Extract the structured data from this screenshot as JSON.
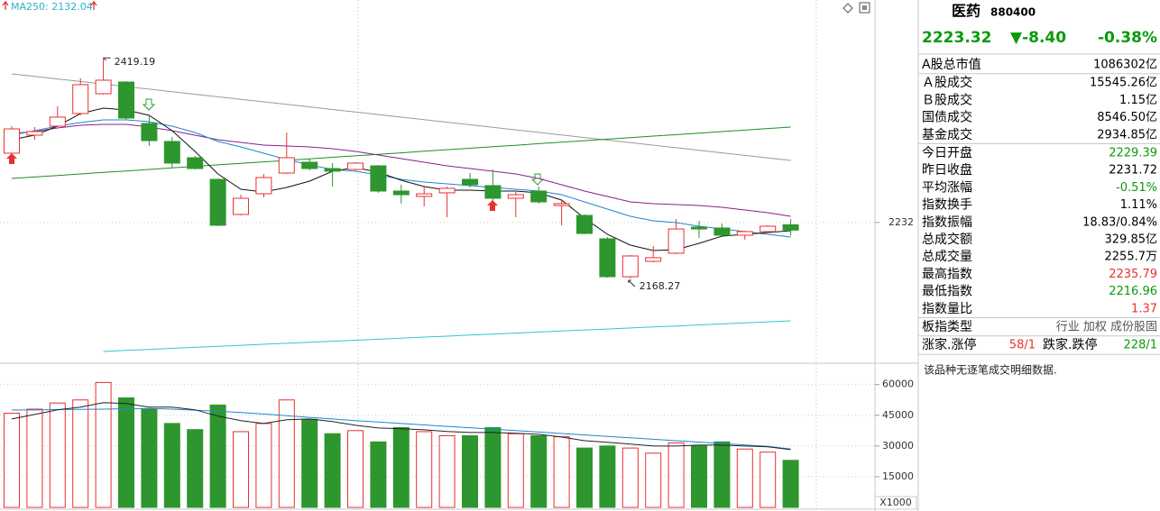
{
  "chart_data": [
    {
      "type": "candlestick",
      "title": "MA250: 2132.04",
      "title_color": "#2bb3c8",
      "up_color": "#e8312f",
      "down_color": "#2e962e",
      "open": [
        2310.8,
        2331.3,
        2341.5,
        2355.9,
        2378.4,
        2391.7,
        2344.6,
        2324.1,
        2305.6,
        2281.0,
        2241.1,
        2264.6,
        2288.2,
        2300.5,
        2293.3,
        2292.3,
        2296.4,
        2267.7,
        2261.6,
        2265.7,
        2281.0,
        2273.9,
        2259.5,
        2267.7,
        2251.3,
        2240.0,
        2213.4,
        2170.3,
        2187.8,
        2197.0,
        2226.7,
        2225.7,
        2217.5,
        2221.6,
        2229.39
      ],
      "high": [
        2341.5,
        2340.5,
        2364.0,
        2395.8,
        2419.19,
        2392.8,
        2353.8,
        2329.2,
        2307.7,
        2282.1,
        2263.6,
        2287.2,
        2334.3,
        2304.6,
        2299.5,
        2300.5,
        2297.4,
        2274.9,
        2273.9,
        2272.8,
        2288.2,
        2292.3,
        2266.7,
        2272.8,
        2256.4,
        2241.1,
        2215.4,
        2194.9,
        2205.2,
        2235.9,
        2233.9,
        2230.8,
        2222.6,
        2228.8,
        2235.79
      ],
      "low": [
        2308.7,
        2326.1,
        2340.5,
        2353.8,
        2377.4,
        2348.7,
        2319.0,
        2294.4,
        2292.3,
        2227.7,
        2240.0,
        2260.5,
        2287.2,
        2291.3,
        2272.8,
        2290.3,
        2265.7,
        2253.4,
        2250.3,
        2238.0,
        2271.8,
        2256.4,
        2238.0,
        2253.4,
        2228.8,
        2218.5,
        2169.3,
        2168.27,
        2186.7,
        2195.9,
        2214.4,
        2215.4,
        2212.4,
        2220.6,
        2216.96
      ],
      "close": [
        2338.4,
        2335.4,
        2351.8,
        2388.7,
        2393.8,
        2350.7,
        2325.1,
        2299.5,
        2293.3,
        2228.8,
        2259.5,
        2283.1,
        2305.6,
        2293.3,
        2290.3,
        2299.5,
        2267.7,
        2263.6,
        2264.6,
        2270.8,
        2274.9,
        2259.5,
        2263.6,
        2255.4,
        2253.4,
        2219.5,
        2170.3,
        2193.9,
        2191.9,
        2224.6,
        2224.6,
        2217.5,
        2221.6,
        2227.7,
        2223.32
      ],
      "lines": [
        {
          "color": "#9a9a9a",
          "values": [
            2401.0,
            2398.1,
            2395.2,
            2392.3,
            2389.4,
            2386.5,
            2383.6,
            2380.7,
            2377.8,
            2374.9,
            2372.0,
            2369.2,
            2366.3,
            2363.4,
            2360.5,
            2357.6,
            2354.7,
            2351.8,
            2348.9,
            2346.0,
            2343.1,
            2340.2,
            2337.3,
            2334.4,
            2331.5,
            2328.6,
            2325.7,
            2322.8,
            2319.9,
            2317.0,
            2314.1,
            2311.2,
            2308.3,
            2305.4,
            2302.5
          ]
        },
        {
          "color": "#1f8f1f",
          "values": [
            2282.0,
            2283.7,
            2285.4,
            2287.2,
            2288.9,
            2290.6,
            2292.3,
            2294.0,
            2295.8,
            2297.5,
            2299.2,
            2300.9,
            2302.6,
            2304.4,
            2306.1,
            2307.8,
            2309.5,
            2311.2,
            2313.0,
            2314.7,
            2316.4,
            2318.1,
            2319.8,
            2321.6,
            2323.3,
            2325.0,
            2326.7,
            2328.4,
            2330.2,
            2331.9,
            2333.6,
            2335.3,
            2337.0,
            2338.8,
            2340.5
          ]
        },
        {
          "color": "#36c3d3",
          "values": [
            null,
            null,
            null,
            null,
            2085.3,
            2086.5,
            2087.6,
            2088.8,
            2090.0,
            2091.1,
            2092.3,
            2093.4,
            2094.6,
            2095.8,
            2096.9,
            2098.1,
            2099.2,
            2100.4,
            2101.6,
            2102.7,
            2103.9,
            2105.0,
            2106.2,
            2107.4,
            2108.5,
            2109.7,
            2110.8,
            2112.0,
            2113.2,
            2114.3,
            2115.5,
            2116.6,
            2117.8,
            2119.0,
            2120.1
          ]
        },
        {
          "color": "#8a1f8a",
          "values": [
            2333.3,
            2335.4,
            2339.5,
            2342.5,
            2343.5,
            2343.5,
            2340.5,
            2336.4,
            2331.3,
            2326.1,
            2323.0,
            2320.0,
            2318.9,
            2317.9,
            2315.9,
            2312.8,
            2308.7,
            2304.6,
            2300.5,
            2296.4,
            2293.3,
            2290.3,
            2287.2,
            2282.1,
            2274.9,
            2267.7,
            2261.6,
            2255.4,
            2253.4,
            2252.3,
            2251.3,
            2249.3,
            2246.2,
            2243.1,
            2239.0
          ]
        },
        {
          "color": "#1f86d0",
          "values": [
            2331.3,
            2336.4,
            2341.5,
            2345.6,
            2348.7,
            2348.7,
            2346.6,
            2341.5,
            2334.3,
            2324.1,
            2317.9,
            2310.8,
            2303.6,
            2297.4,
            2292.3,
            2290.3,
            2286.2,
            2281.0,
            2277.9,
            2275.9,
            2273.9,
            2271.8,
            2269.8,
            2267.7,
            2263.6,
            2255.4,
            2247.2,
            2239.0,
            2233.9,
            2231.8,
            2227.7,
            2224.7,
            2221.6,
            2218.5,
            2215.4
          ]
        },
        {
          "color": "#111111",
          "values": [
            2326.1,
            2331.3,
            2341.5,
            2355.9,
            2362.0,
            2360.0,
            2353.8,
            2336.4,
            2312.8,
            2287.2,
            2269.8,
            2266.7,
            2271.8,
            2279.0,
            2290.3,
            2294.4,
            2289.2,
            2280.0,
            2272.8,
            2268.7,
            2268.7,
            2267.7,
            2267.7,
            2265.7,
            2257.5,
            2236.9,
            2218.5,
            2206.2,
            2200.1,
            2201.1,
            2208.3,
            2216.5,
            2218.5,
            2220.6,
            2222.6
          ]
        }
      ],
      "ylim": [
        2075,
        2485
      ],
      "yticks": [
        2232
      ],
      "grid": true
    },
    {
      "type": "bar",
      "unit_label": "X1000",
      "values": [
        46000,
        48000,
        51000,
        52500,
        61000,
        53500,
        48000,
        41000,
        38000,
        50000,
        37000,
        41000,
        52500,
        43000,
        36000,
        37500,
        32000,
        39000,
        37000,
        35000,
        35000,
        39000,
        36000,
        35000,
        34500,
        29000,
        30000,
        29000,
        26500,
        31500,
        30000,
        32000,
        28500,
        27000,
        23000
      ],
      "lines": [
        {
          "color": "#1f86d0",
          "values": [
            47600,
            47600,
            47800,
            47900,
            48000,
            48200,
            48300,
            48000,
            47500,
            47000,
            46300,
            45600,
            44800,
            44000,
            43200,
            42400,
            41700,
            41000,
            40300,
            39600,
            38900,
            38200,
            37500,
            36800,
            36100,
            35400,
            34700,
            34000,
            33300,
            32600,
            31900,
            31200,
            30500,
            29800,
            28500
          ]
        },
        {
          "color": "#222222",
          "values": [
            43200,
            45400,
            47700,
            49000,
            51200,
            50700,
            49000,
            49000,
            47700,
            44600,
            42400,
            41000,
            42800,
            43200,
            41900,
            40100,
            38800,
            38400,
            37900,
            37100,
            36600,
            36600,
            36200,
            35700,
            34400,
            32600,
            31800,
            30900,
            30000,
            30000,
            30400,
            30400,
            30000,
            29600,
            28200
          ]
        }
      ],
      "ylim": [
        0,
        70000
      ],
      "yticks": [
        15000,
        30000,
        45000,
        60000
      ],
      "grid": true
    }
  ],
  "panel": {
    "name": "医药",
    "code": "880400",
    "price": "2223.32",
    "change": "▼-8.40",
    "percent": "-0.38%",
    "quote_color": "#0a9a0a",
    "groups": [
      [
        {
          "label": "A股总市值",
          "value": "1086302亿",
          "color": "#000000"
        }
      ],
      [
        {
          "label": "Ａ股成交",
          "value": "15545.26亿",
          "color": "#000000"
        },
        {
          "label": "Ｂ股成交",
          "value": "1.15亿",
          "color": "#000000"
        },
        {
          "label": "国债成交",
          "value": "8546.50亿",
          "color": "#000000"
        },
        {
          "label": "基金成交",
          "value": "2934.85亿",
          "color": "#000000"
        }
      ],
      [
        {
          "label": "今日开盘",
          "value": "2229.39",
          "color": "#0a9a0a"
        },
        {
          "label": "昨日收盘",
          "value": "2231.72",
          "color": "#000000"
        },
        {
          "label": "平均涨幅",
          "value": "-0.51%",
          "color": "#0a9a0a"
        },
        {
          "label": "指数换手",
          "value": "1.11%",
          "color": "#000000"
        },
        {
          "label": "指数振幅",
          "value": "18.83/0.84%",
          "color": "#000000"
        },
        {
          "label": "总成交额",
          "value": "329.85亿",
          "color": "#000000"
        },
        {
          "label": "总成交量",
          "value": "2255.7万",
          "color": "#000000"
        },
        {
          "label": "最高指数",
          "value": "2235.79",
          "color": "#e8312f"
        },
        {
          "label": "最低指数",
          "value": "2216.96",
          "color": "#0a9a0a"
        },
        {
          "label": "指数量比",
          "value": "1.37",
          "color": "#e8312f"
        }
      ],
      [
        {
          "label": "板指类型",
          "value": "行业 加权 成份股固",
          "color": "#555555"
        }
      ]
    ],
    "breadth": {
      "up_label": "涨家.涨停",
      "up_value": "58/1",
      "up_color": "#e8312f",
      "down_label": "跌家.跌停",
      "down_value": "228/1",
      "down_color": "#0a9a0a"
    },
    "note": "该品种无逐笔成交明细数据."
  }
}
